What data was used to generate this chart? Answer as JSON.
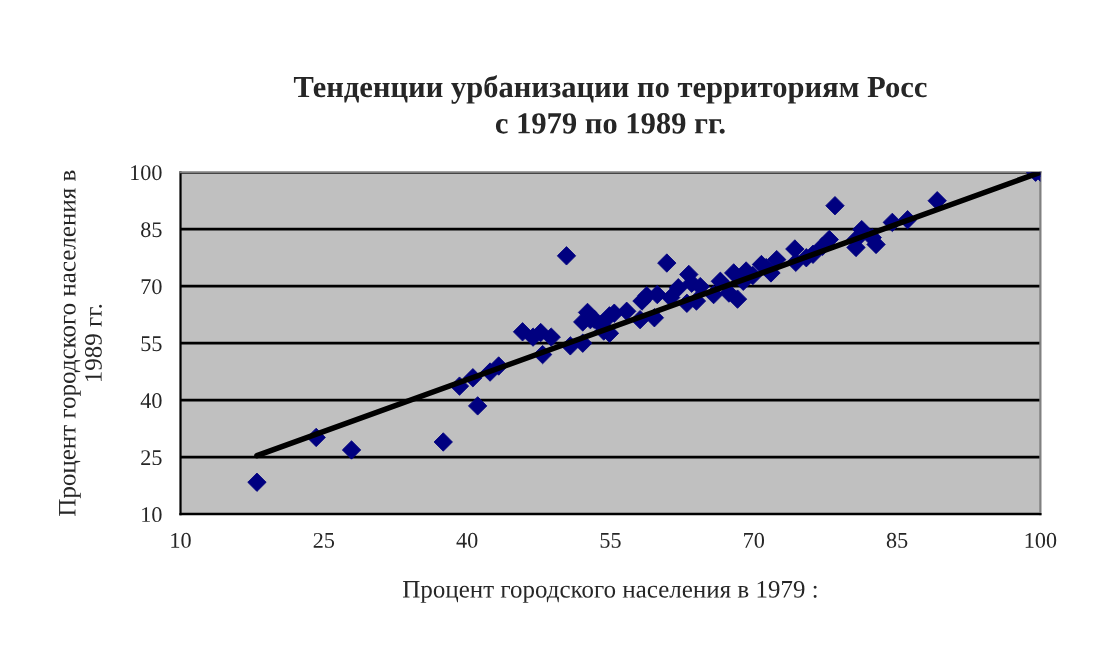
{
  "chart_data": {
    "type": "scatter",
    "title": "Тенденции урбанизации по территориям Росс\nс 1979 по 1989 гг.",
    "xlabel": "Процент городского населения в 1979 :",
    "ylabel": "Процент городского населения в\n1989 гг.",
    "xlim": [
      10,
      100
    ],
    "ylim": [
      10,
      100
    ],
    "xticks": [
      10,
      25,
      40,
      55,
      70,
      85,
      100
    ],
    "yticks": [
      10,
      25,
      40,
      55,
      70,
      85,
      100
    ],
    "grid": "y",
    "legend": false,
    "series": [
      {
        "marker": "diamond",
        "color": "#000080",
        "x": [
          18.0,
          24.2,
          27.9,
          37.5,
          39.2,
          40.6,
          41.1,
          42.4,
          43.3,
          45.8,
          46.9,
          47.7,
          47.9,
          48.8,
          50.4,
          50.8,
          52.1,
          52.1,
          52.6,
          52.9,
          54.3,
          54.9,
          53.3,
          54.0,
          54.9,
          55.4,
          56.7,
          58.1,
          58.3,
          58.8,
          59.6,
          59.9,
          60.9,
          61.3,
          62.1,
          63.0,
          63.2,
          63.5,
          64.0,
          64.4,
          65.8,
          66.5,
          67.4,
          67.9,
          68.3,
          68.9,
          69.2,
          69.9,
          70.8,
          71.3,
          71.8,
          72.4,
          74.3,
          74.4,
          75.5,
          76.2,
          77.2,
          77.9,
          78.5,
          80.7,
          80.7,
          81.3,
          82.4,
          82.8,
          84.5,
          86.1,
          89.2,
          99.5,
          100
        ],
        "values": [
          18.4,
          30.2,
          26.9,
          29.0,
          43.7,
          45.9,
          38.5,
          47.4,
          49.0,
          58.0,
          56.6,
          57.8,
          52.0,
          56.6,
          78.0,
          54.3,
          55.0,
          60.6,
          63.1,
          61.2,
          58.2,
          62.2,
          61.3,
          59.9,
          57.6,
          62.9,
          63.4,
          61.2,
          66.1,
          67.5,
          61.7,
          67.8,
          76.1,
          67.0,
          69.6,
          65.5,
          73.1,
          70.8,
          66.1,
          69.9,
          67.8,
          71.3,
          68.2,
          73.5,
          66.6,
          71.3,
          74.0,
          72.8,
          75.7,
          74.9,
          73.5,
          77.0,
          79.8,
          76.3,
          77.5,
          78.4,
          80.5,
          82.3,
          91.2,
          82.3,
          80.2,
          84.9,
          82.8,
          81.0,
          86.8,
          87.5,
          92.5,
          100,
          100
        ]
      },
      {
        "type": "line",
        "color": "#000000",
        "x": [
          18.0,
          100
        ],
        "values": [
          25.4,
          100
        ]
      }
    ]
  }
}
